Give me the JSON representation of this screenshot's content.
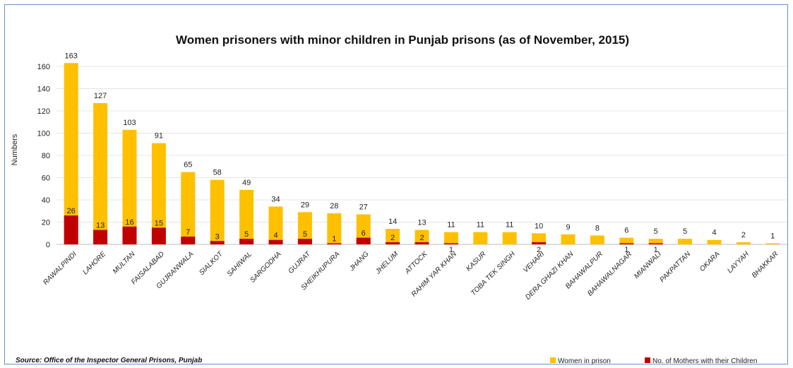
{
  "chart_data": {
    "type": "bar",
    "stacked": false,
    "title": "Women prisoners with minor children in Punjab prisons (as of November, 2015)",
    "ylabel": "Numbers",
    "xlabel": "",
    "ylim": [
      0,
      160
    ],
    "yticks": [
      0,
      20,
      40,
      60,
      80,
      100,
      120,
      140,
      160
    ],
    "grid": true,
    "legend_position": "bottom-right",
    "categories": [
      "RAWALPINDI",
      "LAHORE",
      "MULTAN",
      "FAISALABAD",
      "GUJRANWALA",
      "SIALKOT",
      "SAHIWAL",
      "SARGODHA",
      "GUJRAT",
      "SHEIKHUPURA",
      "JHANG",
      "JHELUM",
      "ATTOCK",
      "RAHIM YAR KHAN",
      "KASUR",
      "TOBA TEK SINGH",
      "VEHARI",
      "DERA GHAZI KHAN",
      "BAHAWALPUR",
      "BAHAWALNAGAR",
      "MIANWALI",
      "PAKPATTAN",
      "OKARA",
      "LAYYAH",
      "BHAKKAR"
    ],
    "series": [
      {
        "name": "Women in prison",
        "color": "#FFC000",
        "values": [
          163,
          127,
          103,
          91,
          65,
          58,
          49,
          34,
          29,
          28,
          27,
          14,
          13,
          11,
          11,
          11,
          10,
          9,
          8,
          6,
          5,
          5,
          4,
          2,
          1
        ]
      },
      {
        "name": "No. of Mothers with their Children",
        "color": "#C00000",
        "values": [
          26,
          13,
          16,
          15,
          7,
          3,
          5,
          4,
          5,
          1,
          6,
          2,
          2,
          1,
          null,
          null,
          2,
          null,
          null,
          1,
          1,
          null,
          null,
          null,
          null
        ]
      }
    ],
    "source": "Source: Office of the Inspector General Prisons, Punjab"
  }
}
